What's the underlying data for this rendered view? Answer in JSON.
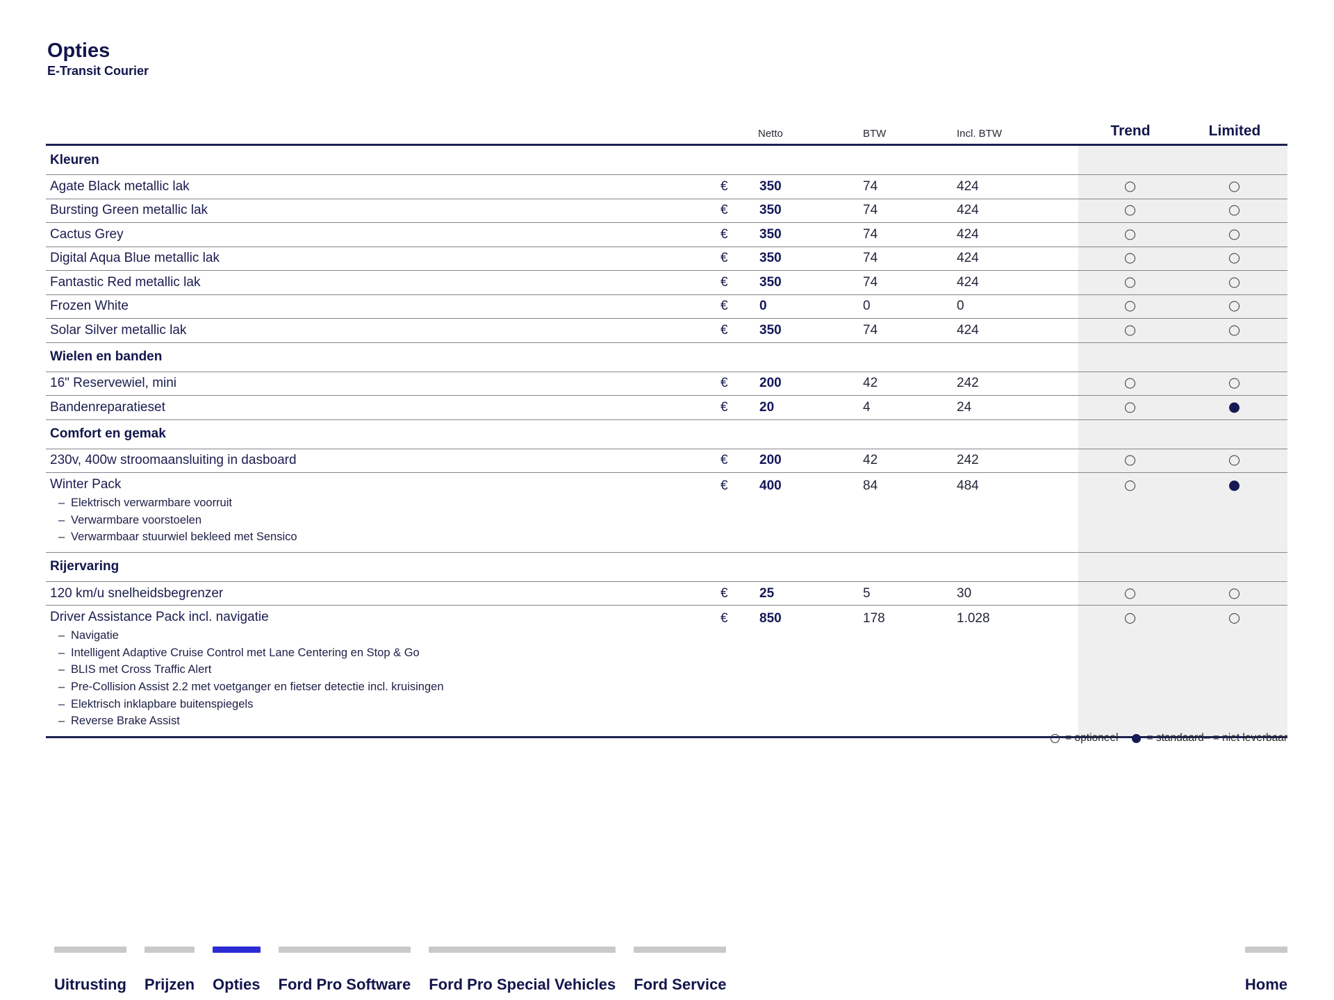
{
  "header": {
    "title": "Opties",
    "subtitle": "E-Transit Courier"
  },
  "colors": {
    "accent_blue": "#2b2bd6",
    "navy": "#12154b",
    "standard_dot": "#171a52",
    "band_gray": "#efeff0"
  },
  "table": {
    "currency": "€",
    "columns": {
      "netto": "Netto",
      "btw": "BTW",
      "incl_btw": "Incl. BTW",
      "trend": "Trend",
      "limited": "Limited"
    },
    "rows": [
      {
        "type": "section",
        "label": "Kleuren"
      },
      {
        "type": "item",
        "label": "Agate Black metallic lak",
        "netto": "350",
        "btw": "74",
        "incl_btw": "424",
        "trend": "optional",
        "limited": "optional"
      },
      {
        "type": "item",
        "label": "Bursting Green metallic lak",
        "netto": "350",
        "btw": "74",
        "incl_btw": "424",
        "trend": "optional",
        "limited": "optional"
      },
      {
        "type": "item",
        "label": "Cactus Grey",
        "netto": "350",
        "btw": "74",
        "incl_btw": "424",
        "trend": "optional",
        "limited": "optional"
      },
      {
        "type": "item",
        "label": "Digital Aqua Blue metallic lak",
        "netto": "350",
        "btw": "74",
        "incl_btw": "424",
        "trend": "optional",
        "limited": "optional"
      },
      {
        "type": "item",
        "label": "Fantastic Red metallic lak",
        "netto": "350",
        "btw": "74",
        "incl_btw": "424",
        "trend": "optional",
        "limited": "optional"
      },
      {
        "type": "item",
        "label": "Frozen White",
        "netto": "0",
        "btw": "0",
        "incl_btw": "0",
        "trend": "optional",
        "limited": "optional"
      },
      {
        "type": "item",
        "label": "Solar Silver metallic lak",
        "netto": "350",
        "btw": "74",
        "incl_btw": "424",
        "trend": "optional",
        "limited": "optional"
      },
      {
        "type": "section",
        "label": "Wielen en banden"
      },
      {
        "type": "item",
        "label": "16\" Reservewiel, mini",
        "netto": "200",
        "btw": "42",
        "incl_btw": "242",
        "trend": "optional",
        "limited": "optional"
      },
      {
        "type": "item",
        "label": "Bandenreparatieset",
        "netto": "20",
        "btw": "4",
        "incl_btw": "24",
        "trend": "optional",
        "limited": "standard"
      },
      {
        "type": "section",
        "label": "Comfort en gemak"
      },
      {
        "type": "item",
        "label": "230v, 400w stroomaansluiting in dasboard",
        "netto": "200",
        "btw": "42",
        "incl_btw": "242",
        "trend": "optional",
        "limited": "optional"
      },
      {
        "type": "item",
        "label": "Winter Pack",
        "netto": "400",
        "btw": "84",
        "incl_btw": "484",
        "trend": "optional",
        "limited": "standard",
        "sub_items": [
          "Elektrisch verwarmbare voorruit",
          "Verwarmbare voorstoelen",
          "Verwarmbaar stuurwiel bekleed met Sensico"
        ]
      },
      {
        "type": "section",
        "label": "Rijervaring"
      },
      {
        "type": "item",
        "label": "120 km/u snelheidsbegrenzer",
        "netto": "25",
        "btw": "5",
        "incl_btw": "30",
        "trend": "optional",
        "limited": "optional"
      },
      {
        "type": "item",
        "label": "Driver Assistance Pack incl. navigatie",
        "netto": "850",
        "btw": "178",
        "incl_btw": "1.028",
        "trend": "optional",
        "limited": "optional",
        "sub_items": [
          "Navigatie",
          "Intelligent Adaptive Cruise Control met Lane Centering en Stop & Go",
          "BLIS met Cross Traffic Alert",
          "Pre-Collision Assist 2.2 met voetganger en fietser detectie incl. kruisingen",
          "Elektrisch inklapbare buitenspiegels",
          "Reverse Brake Assist"
        ]
      }
    ]
  },
  "legend": {
    "optional_symbol": "○",
    "optional_label": "= optioneel",
    "standard_symbol": "●",
    "standard_label": "= standaard",
    "na_label": "– = niet leverbaar"
  },
  "nav": {
    "tabs": [
      {
        "label": "Uitrusting",
        "active": false
      },
      {
        "label": "Prijzen",
        "active": false
      },
      {
        "label": "Opties",
        "active": true
      },
      {
        "label": "Ford Pro Software",
        "active": false
      },
      {
        "label": "Ford Pro Special Vehicles",
        "active": false
      },
      {
        "label": "Ford Service",
        "active": false
      }
    ],
    "home": {
      "label": "Home"
    }
  }
}
